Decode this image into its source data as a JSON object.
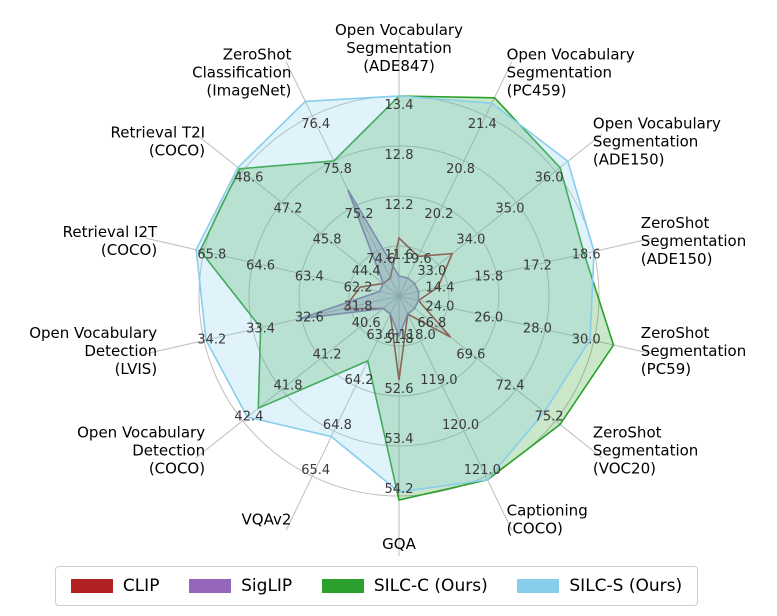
{
  "chart_data": {
    "type": "radar",
    "title": "",
    "axes": [
      {
        "label": "Open Vocabulary\nSegmentation\n(ADE847)",
        "ticks": [
          "11.6",
          "12.2",
          "12.8",
          "13.4"
        ]
      },
      {
        "label": "Open Vocabulary\nSegmentation\n(PC459)",
        "ticks": [
          "19.6",
          "20.2",
          "20.8",
          "21.4"
        ]
      },
      {
        "label": "Open Vocabulary\nSegmentation\n(ADE150)",
        "ticks": [
          "33.0",
          "34.0",
          "35.0",
          "36.0"
        ]
      },
      {
        "label": "ZeroShot\nSegmentation\n(ADE150)",
        "ticks": [
          "14.4",
          "15.8",
          "17.2",
          "18.6"
        ]
      },
      {
        "label": "ZeroShot\nSegmentation\n(PC59)",
        "ticks": [
          "24.0",
          "26.0",
          "28.0",
          "30.0"
        ]
      },
      {
        "label": "ZeroShot\nSegmentation\n(VOC20)",
        "ticks": [
          "66.8",
          "69.6",
          "72.4",
          "75.2"
        ]
      },
      {
        "label": "Captioning\n(COCO)",
        "ticks": [
          "118.0",
          "119.0",
          "120.0",
          "121.0"
        ]
      },
      {
        "label": "GQA",
        "ticks": [
          "51.8",
          "52.6",
          "53.4",
          "54.2"
        ]
      },
      {
        "label": "VQAv2",
        "ticks": [
          "63.6",
          "64.2",
          "64.8",
          "65.4"
        ]
      },
      {
        "label": "Open Vocabulary\nDetection\n(COCO)",
        "ticks": [
          "40.6",
          "41.2",
          "41.8",
          "42.4"
        ]
      },
      {
        "label": "Open Vocabulary\nDetection\n(LVIS)",
        "ticks": [
          "31.8",
          "32.6",
          "33.4",
          "34.2"
        ]
      },
      {
        "label": "Retrieval I2T\n(COCO)",
        "ticks": [
          "62.2",
          "63.4",
          "64.6",
          "65.8"
        ]
      },
      {
        "label": "Retrieval T2I\n(COCO)",
        "ticks": [
          "44.4",
          "45.8",
          "47.2",
          "48.6"
        ]
      },
      {
        "label": "ZeroShot\nClassification\n(ImageNet)",
        "ticks": [
          "74.6",
          "75.2",
          "75.8",
          "76.4"
        ]
      }
    ],
    "series": [
      {
        "name": "CLIP",
        "color": "#b22222",
        "fill_opacity": 0.0,
        "values": [
          0.29,
          0.22,
          0.34,
          0.2,
          0.1,
          0.33,
          0.1,
          0.42,
          0.1,
          0.1,
          0.28,
          0.2,
          0.1,
          0.1
        ]
      },
      {
        "name": "SigLIP",
        "color": "#9467bd",
        "fill_opacity": 0.35,
        "values": [
          0.1,
          0.1,
          0.1,
          0.1,
          0.1,
          0.1,
          0.1,
          0.2,
          0.1,
          0.1,
          0.51,
          0.1,
          0.1,
          0.59
        ]
      },
      {
        "name": "SILC-C (Ours)",
        "color": "#2ca02c",
        "fill_opacity": 0.25,
        "values": [
          1.0,
          1.1,
          1.03,
          0.95,
          1.1,
          1.03,
          1.02,
          1.02,
          0.36,
          0.9,
          0.71,
          1.02,
          1.02,
          0.75
        ]
      },
      {
        "name": "SILC-S (Ours)",
        "color": "#87ceeb",
        "fill_opacity": 0.25,
        "values": [
          1.0,
          1.07,
          1.08,
          1.0,
          0.98,
          0.93,
          1.02,
          0.98,
          0.78,
          0.97,
          0.99,
          1.04,
          1.03,
          1.08
        ]
      }
    ],
    "legend_position": "bottom",
    "grid": true
  }
}
